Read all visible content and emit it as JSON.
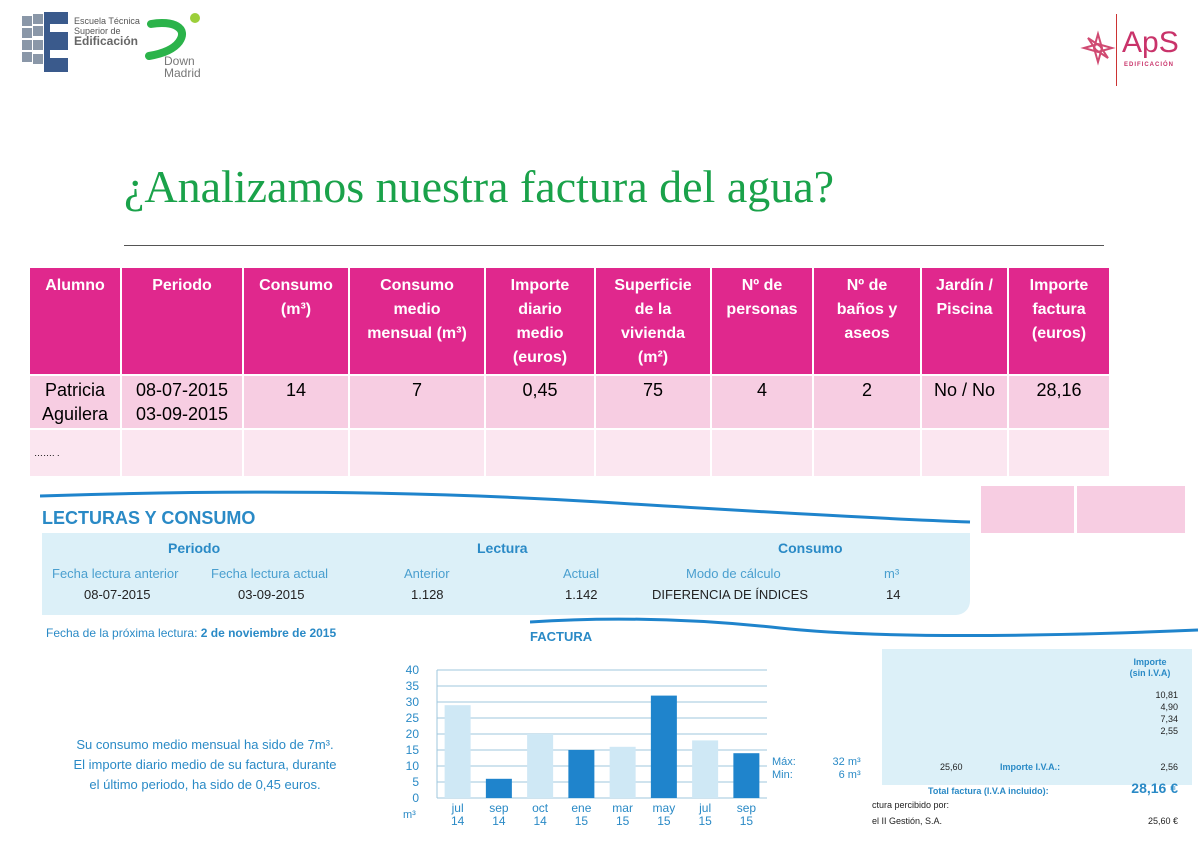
{
  "header": {
    "school_lines": [
      "Escuela Técnica",
      "Superior de"
    ],
    "school_name": "Edificación",
    "down_line1": "Down",
    "down_line2": "Madrid",
    "aps_name": "ApS",
    "aps_sub": "EDIFICACIÓN"
  },
  "title": "¿Analizamos nuestra factura del agua?",
  "table": {
    "headers": [
      [
        "Alumno"
      ],
      [
        "Periodo"
      ],
      [
        "Consumo",
        "(m³)"
      ],
      [
        "Consumo",
        "medio",
        "mensual (m³)"
      ],
      [
        "Importe",
        "diario",
        "medio",
        "(euros)"
      ],
      [
        "Superficie",
        "de la",
        "vivienda",
        "(m²)"
      ],
      [
        "Nº de",
        "personas"
      ],
      [
        "Nº de",
        "baños y",
        "aseos"
      ],
      [
        "Jardín /",
        "Piscina"
      ],
      [
        "Importe",
        "factura",
        "(euros)"
      ]
    ],
    "row1": {
      "alumno": [
        "Patricia",
        "Aguilera"
      ],
      "periodo": [
        "08-07-2015",
        "03-09-2015"
      ],
      "consumo": "14",
      "consumo_medio": "7",
      "importe_diario": "0,45",
      "superficie": "75",
      "personas": "4",
      "banos": "2",
      "jardin": "No / No",
      "importe_factura": "28,16"
    },
    "row2_placeholder": "……. ."
  },
  "lecturas": {
    "title": "LECTURAS Y CONSUMO",
    "group_periodo": "Periodo",
    "group_lectura": "Lectura",
    "group_consumo": "Consumo",
    "col_fecha_anterior": "Fecha lectura anterior",
    "col_fecha_actual": "Fecha lectura actual",
    "col_anterior": "Anterior",
    "col_actual": "Actual",
    "col_modo": "Modo de cálculo",
    "col_m3": "m³",
    "val_fecha_anterior": "08-07-2015",
    "val_fecha_actual": "03-09-2015",
    "val_anterior": "1.128",
    "val_actual": "1.142",
    "val_modo": "DIFERENCIA DE ÍNDICES",
    "val_m3": "14",
    "next_label": "Fecha de la próxima lectura:",
    "next_date": "2 de noviembre de 2015"
  },
  "factura": {
    "title": "FACTURA",
    "summary_lines": [
      "Su consumo medio mensual ha sido de 7m³.",
      "El importe diario medio de su factura, durante",
      "el último periodo, ha sido de 0,45 euros."
    ],
    "max_label": "Máx:",
    "max_value": "32 m³",
    "min_label": "Min:",
    "min_value": "6 m³",
    "importe_head": [
      "Importe",
      "(sin I.V.A)"
    ],
    "importe_values": [
      "10,81",
      "4,90",
      "7,34",
      "2,55"
    ],
    "base_iva": "25,60",
    "iva_label": "Importe I.V.A.:",
    "iva_value": "2,56",
    "total_label": "Total factura (I.V.A incluido):",
    "total_value": "28,16 €",
    "percibido_label": "ctura percibido por:",
    "percibido_name": "el II Gestión, S.A.",
    "percibido_value": "25,60 €"
  },
  "chart_data": {
    "type": "bar",
    "categories": [
      "jul 14",
      "sep 14",
      "oct 14",
      "ene 15",
      "mar 15",
      "may 15",
      "jul 15",
      "sep 15"
    ],
    "cat_month": [
      "jul",
      "sep",
      "oct",
      "ene",
      "mar",
      "may",
      "jul",
      "sep"
    ],
    "cat_year": [
      "14",
      "14",
      "14",
      "15",
      "15",
      "15",
      "15",
      "15"
    ],
    "values": [
      29,
      6,
      20,
      15,
      16,
      32,
      18,
      14
    ],
    "highlight": [
      false,
      true,
      false,
      true,
      false,
      true,
      false,
      true
    ],
    "ylim": [
      0,
      40
    ],
    "yticks": [
      0,
      5,
      10,
      15,
      20,
      25,
      30,
      35,
      40
    ],
    "ylabel": "m³",
    "grid": true,
    "colors": {
      "light": "#cfe8f5",
      "dark": "#1f84cc",
      "text": "#2a8ac6"
    }
  }
}
